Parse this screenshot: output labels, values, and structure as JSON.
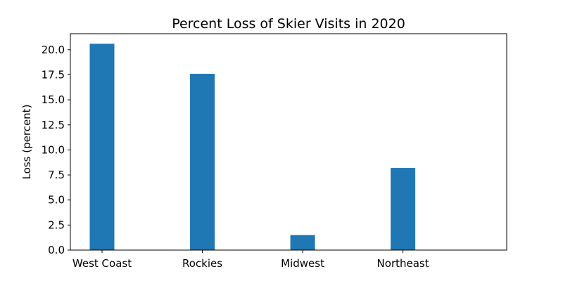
{
  "chart_data": {
    "type": "bar",
    "title": "Percent Loss of Skier Visits in 2020",
    "xlabel": "",
    "ylabel": "Loss (percent)",
    "categories": [
      "West Coast",
      "Rockies",
      "Midwest",
      "Northeast"
    ],
    "values": [
      20.6,
      17.6,
      1.5,
      8.2
    ],
    "ylim": [
      0,
      21.6
    ],
    "yticks": [
      "0.0",
      "2.5",
      "5.0",
      "7.5",
      "10.0",
      "12.5",
      "15.0",
      "17.5",
      "20.0"
    ],
    "bar_color": "#1f77b4",
    "grid": false
  }
}
